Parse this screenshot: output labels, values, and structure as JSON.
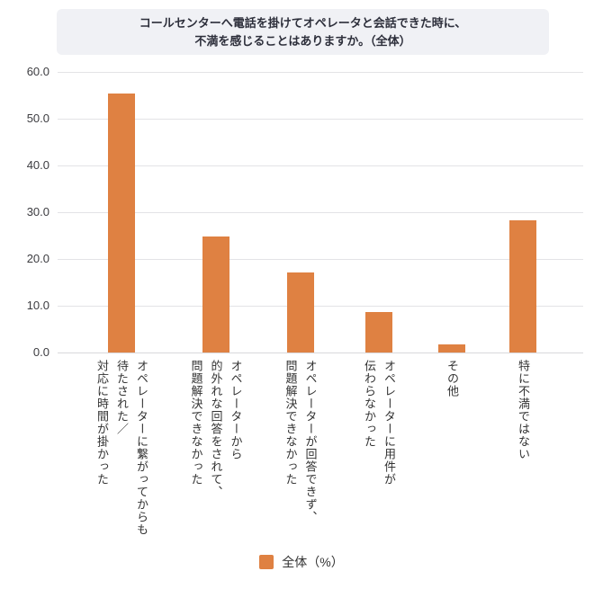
{
  "title": {
    "line1": "コールセンターへ電話を掛けてオペレータと会話できた時に、",
    "line2": "不満を感じることはありますか。（全体）"
  },
  "legend": {
    "label": "全体（%）"
  },
  "colors": {
    "bar": "#df8142",
    "title_bg": "#f0f1f5",
    "title_text": "#2d2f3b",
    "grid": "#e3e3e6",
    "grid_zero": "#d8d8db",
    "tick_text": "#3c3c40",
    "label_text": "#333333"
  },
  "chart_data": {
    "type": "bar",
    "title": "コールセンターへ電話を掛けてオペレータと会話できた時に、不満を感じることはありますか。（全体）",
    "categories": [
      "オペレーターに繋がってからも待たされた／対応に時間が掛かった",
      "オペレーターから的外れな回答をされて、問題解決できなかった",
      "オペレーターが回答できず、問題解決できなかった",
      "オペレーターに用件が伝わらなかった",
      "その他",
      "特に不満ではない"
    ],
    "category_lines": [
      [
        "オペレーターに繋がってからも",
        "待たされた／",
        "対応に時間が掛かった"
      ],
      [
        "オペレーターから",
        "的外れな回答をされて、",
        "問題解決できなかった"
      ],
      [
        "オペレーターが回答できず、",
        "問題解決できなかった"
      ],
      [
        "オペレーターに用件が",
        "伝わらなかった"
      ],
      [
        "その他"
      ],
      [
        "特に不満ではない"
      ]
    ],
    "values": [
      55.3,
      24.8,
      17.1,
      8.6,
      1.7,
      28.2
    ],
    "series_name": "全体（%）",
    "xlabel": "",
    "ylabel": "",
    "ylim": [
      0,
      60
    ],
    "ytick_step": 10,
    "ytick_labels": [
      "60.0",
      "50.0",
      "40.0",
      "30.0",
      "20.0",
      "10.0",
      "0.0"
    ],
    "grid": true,
    "legend_position": "bottom"
  }
}
